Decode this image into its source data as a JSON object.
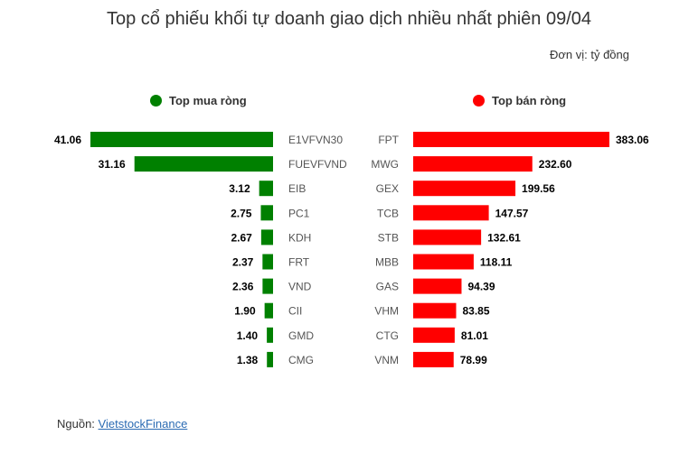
{
  "title": "Top cổ phiếu khối tự doanh giao dịch nhiều nhất phiên 09/04",
  "unit": "Đơn vị: tỷ đồng",
  "colors": {
    "buy": "#008000",
    "sell": "#ff0000"
  },
  "source": {
    "label": "Nguồn:",
    "link_text": "VietstockFinance"
  },
  "chart_data": [
    {
      "type": "bar",
      "orientation": "horizontal",
      "title": "Top mua ròng",
      "categories": [
        "E1VFVN30",
        "FUEVFVND",
        "EIB",
        "PC1",
        "KDH",
        "FRT",
        "VND",
        "CII",
        "GMD",
        "CMG"
      ],
      "values": [
        41.06,
        31.16,
        3.12,
        2.75,
        2.67,
        2.37,
        2.36,
        1.9,
        1.4,
        1.38
      ],
      "value_labels": [
        "41.06",
        "31.16",
        "3.12",
        "2.75",
        "2.67",
        "2.37",
        "2.36",
        "1.90",
        "1.40",
        "1.38"
      ],
      "direction": "leftward",
      "color": "#008000",
      "legend_marker": "green-dot",
      "grid": false
    },
    {
      "type": "bar",
      "orientation": "horizontal",
      "title": "Top bán ròng",
      "categories": [
        "FPT",
        "MWG",
        "GEX",
        "TCB",
        "STB",
        "MBB",
        "GAS",
        "VHM",
        "CTG",
        "VNM"
      ],
      "values": [
        383.06,
        232.6,
        199.56,
        147.57,
        132.61,
        118.11,
        94.39,
        83.85,
        81.01,
        78.99
      ],
      "value_labels": [
        "383.06",
        "232.60",
        "199.56",
        "147.57",
        "132.61",
        "118.11",
        "94.39",
        "83.85",
        "81.01",
        "78.99"
      ],
      "direction": "rightward",
      "color": "#ff0000",
      "legend_marker": "red-dot",
      "grid": false
    }
  ]
}
